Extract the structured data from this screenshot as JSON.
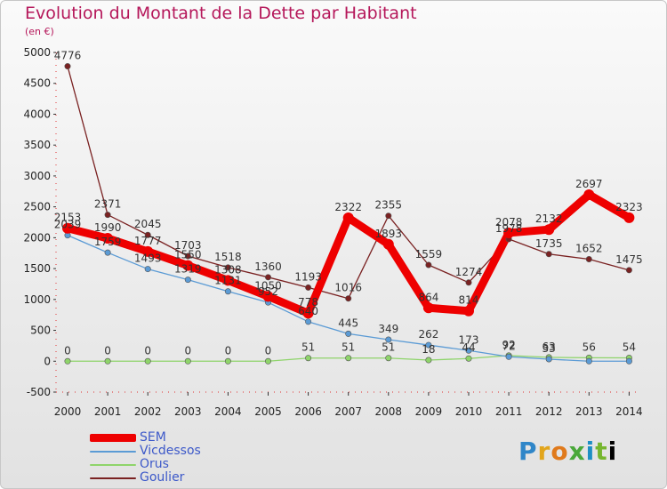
{
  "header": {
    "title": "Evolution du Montant de la Dette par Habitant",
    "unit": "(en €)"
  },
  "logo": {
    "text": "Proxiti"
  },
  "chart_data": {
    "type": "line",
    "title": "Evolution du Montant de la Dette par Habitant",
    "ylabel": "(en €)",
    "xlabel": "",
    "ylim": [
      -500,
      5000
    ],
    "yticks": [
      -500,
      0,
      500,
      1000,
      1500,
      2000,
      2500,
      3000,
      3500,
      4000,
      4500,
      5000
    ],
    "categories": [
      "2000",
      "2001",
      "2002",
      "2003",
      "2004",
      "2005",
      "2006",
      "2007",
      "2008",
      "2009",
      "2010",
      "2011",
      "2012",
      "2013",
      "2014"
    ],
    "grid": false,
    "legend": "bottom-left",
    "series": [
      {
        "name": "SEM",
        "color": "#ee0000",
        "values": [
          2153,
          1990,
          1777,
          1550,
          1308,
          1050,
          778,
          2322,
          1893,
          864,
          814,
          2078,
          2132,
          2697,
          2323
        ],
        "labels": [
          "2153",
          "1990",
          "1777",
          "1550",
          "1308",
          "1050",
          "778",
          "2322",
          "1893",
          "864",
          "814",
          "2078",
          "2132",
          "2697",
          "2323"
        ]
      },
      {
        "name": "Vicdessos",
        "color": "#5b9bd5",
        "values": [
          2039,
          1759,
          1493,
          1319,
          1131,
          952,
          640,
          445,
          349,
          262,
          173,
          72,
          33,
          0,
          0
        ],
        "labels": [
          "2039",
          "1759",
          "1493",
          "1319",
          "1131",
          "952",
          "640",
          "445",
          "349",
          "262",
          "173",
          "72",
          "33",
          "",
          ""
        ]
      },
      {
        "name": "Orus",
        "color": "#8ed46a",
        "values": [
          0,
          0,
          0,
          0,
          0,
          0,
          51,
          51,
          51,
          18,
          44,
          92,
          63,
          56,
          54
        ],
        "labels": [
          "0",
          "0",
          "0",
          "0",
          "0",
          "0",
          "51",
          "51",
          "51",
          "18",
          "44",
          "92",
          "63",
          "56",
          "54"
        ]
      },
      {
        "name": "Goulier",
        "color": "#7a2222",
        "values": [
          4776,
          2371,
          2045,
          1703,
          1518,
          1360,
          1193,
          1016,
          2355,
          1559,
          1274,
          1978,
          1735,
          1652,
          1475
        ],
        "labels": [
          "4776",
          "2371",
          "2045",
          "1703",
          "1518",
          "1360",
          "1193",
          "1016",
          "2355",
          "1559",
          "1274",
          "1978",
          "1735",
          "1652",
          "1475"
        ]
      }
    ]
  }
}
